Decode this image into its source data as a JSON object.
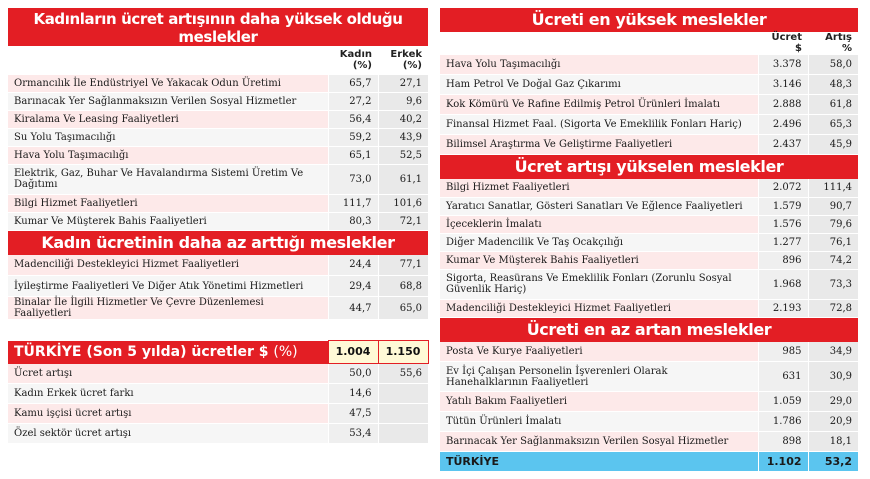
{
  "left": {
    "s1": {
      "title": "Kadınların ücret artışının daha yüksek olduğu meslekler",
      "col_kadin": "Kadın (%)",
      "col_erkek": "Erkek (%)",
      "rows": [
        {
          "name": "Ormancılık İle Endüstriyel Ve Yakacak Odun Üretimi",
          "k": "65,7",
          "e": "27,1"
        },
        {
          "name": "Barınacak Yer Sağlanmaksızın Verilen Sosyal Hizmetler",
          "k": "27,2",
          "e": "9,6"
        },
        {
          "name": "Kiralama Ve Leasing Faaliyetleri",
          "k": "56,4",
          "e": "40,2"
        },
        {
          "name": "Su Yolu Taşımacılığı",
          "k": "59,2",
          "e": "43,9"
        },
        {
          "name": "Hava Yolu Taşımacılığı",
          "k": "65,1",
          "e": "52,5"
        },
        {
          "name": "Elektrik, Gaz, Buhar Ve Havalandırma Sistemi Üretim Ve Dağıtımı",
          "k": "73,0",
          "e": "61,1"
        },
        {
          "name": "Bilgi Hizmet Faaliyetleri",
          "k": "111,7",
          "e": "101,6"
        },
        {
          "name": "Kumar Ve Müşterek Bahis Faaliyetleri",
          "k": "80,3",
          "e": "72,1"
        }
      ]
    },
    "s2": {
      "title": "Kadın ücretinin daha az arttığı meslekler",
      "rows": [
        {
          "name": "Madenciliği Destekleyici Hizmet Faaliyetleri",
          "k": "24,4",
          "e": "77,1"
        },
        {
          "name": "İyileştirme Faaliyetleri Ve Diğer Atık Yönetimi Hizmetleri",
          "k": "29,4",
          "e": "68,8"
        },
        {
          "name": "Binalar İle İlgili Hizmetler Ve Çevre Düzenlemesi Faaliyetleri",
          "k": "44,7",
          "e": "65,0"
        }
      ]
    },
    "s3": {
      "title": "TÜRKİYE (Son 5 yılda) ücretler $",
      "title_pct": "(%)",
      "h1": "1.004",
      "h2": "1.150",
      "rows": [
        {
          "name": "Ücret artışı",
          "k": "50,0",
          "e": "55,6"
        },
        {
          "name": "Kadın Erkek ücret farkı",
          "k": "14,6",
          "e": ""
        },
        {
          "name": "Kamu işçisi ücret artışı",
          "k": "47,5",
          "e": ""
        },
        {
          "name": "Özel sektör ücret artışı",
          "k": "53,4",
          "e": ""
        }
      ]
    }
  },
  "right": {
    "s1": {
      "title": "Ücreti en yüksek meslekler",
      "col_ucret": "Ücret $",
      "col_artis": "Artış %",
      "rows": [
        {
          "name": "Hava Yolu Taşımacılığı",
          "u": "3.378",
          "a": "58,0"
        },
        {
          "name": "Ham Petrol Ve Doğal Gaz Çıkarımı",
          "u": "3.146",
          "a": "48,3"
        },
        {
          "name": "Kok Kömürü Ve Rafine Edilmiş Petrol Ürünleri İmalatı",
          "u": "2.888",
          "a": "61,8"
        },
        {
          "name": "Finansal Hizmet Faal. (Sigorta Ve Emeklilik Fonları Hariç)",
          "u": "2.496",
          "a": "65,3"
        },
        {
          "name": "Bilimsel Araştırma Ve Geliştirme Faaliyetleri",
          "u": "2.437",
          "a": "45,9"
        }
      ]
    },
    "s2": {
      "title": "Ücret artışı yükselen meslekler",
      "rows": [
        {
          "name": "Bilgi Hizmet Faaliyetleri",
          "u": "2.072",
          "a": "111,4"
        },
        {
          "name": "Yaratıcı Sanatlar, Gösteri Sanatları Ve Eğlence Faaliyetleri",
          "u": "1.579",
          "a": "90,7"
        },
        {
          "name": "İçeceklerin İmalatı",
          "u": "1.576",
          "a": "79,6"
        },
        {
          "name": "Diğer Madencilik Ve Taş Ocakçılığı",
          "u": "1.277",
          "a": "76,1"
        },
        {
          "name": "Kumar Ve Müşterek Bahis Faaliyetleri",
          "u": "896",
          "a": "74,2"
        },
        {
          "name": "Sigorta, Reasürans Ve Emeklilik Fonları (Zorunlu Sosyal Güvenlik Hariç)",
          "u": "1.968",
          "a": "73,3"
        },
        {
          "name": "Madenciliği Destekleyici Hizmet Faaliyetleri",
          "u": "2.193",
          "a": "72,8"
        }
      ]
    },
    "s3": {
      "title": "Ücreti en az artan meslekler",
      "rows": [
        {
          "name": "Posta Ve Kurye Faaliyetleri",
          "u": "985",
          "a": "34,9"
        },
        {
          "name": "Ev İçi Çalışan Personelin İşverenleri Olarak Hanehalklarının Faaliyetleri",
          "u": "631",
          "a": "30,9"
        },
        {
          "name": "Yatılı Bakım Faaliyetleri",
          "u": "1.059",
          "a": "29,0"
        },
        {
          "name": "Tütün Ürünleri İmalatı",
          "u": "1.786",
          "a": "20,9"
        },
        {
          "name": "Barınacak Yer Sağlanmaksızın Verilen Sosyal Hizmetler",
          "u": "898",
          "a": "18,1"
        }
      ],
      "total": {
        "name": "TÜRKİYE",
        "u": "1.102",
        "a": "53,2"
      }
    }
  }
}
